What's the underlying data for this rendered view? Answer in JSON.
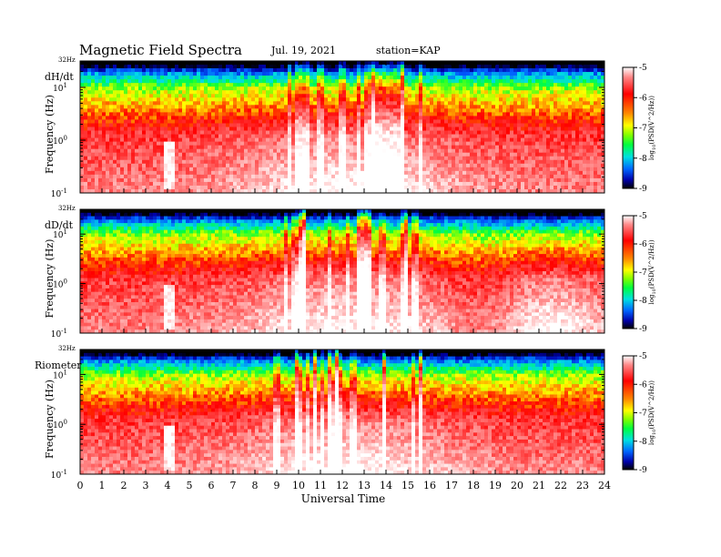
{
  "header": {
    "title": "Magnetic Field Spectra",
    "date": "Jul. 19, 2021",
    "station": "station=KAP"
  },
  "chart_data": [
    {
      "type": "heatmap",
      "panel_label": "dH/dt",
      "ylabel": "Frequency (Hz)",
      "yscale": "log",
      "y_top_label": "32Hz",
      "y_ticks": [
        {
          "base": "10",
          "exp": "1"
        },
        {
          "base": "10",
          "exp": "0"
        },
        {
          "base": "10",
          "exp": "-1"
        }
      ],
      "colorbar": {
        "label": "log10(PSD(V^2/Hz))",
        "label_prefix": "log",
        "label_sub": "10",
        "label_rest": "(PSD(V^2/Hz))",
        "ticks": [
          "-5",
          "-6",
          "-7",
          "-8",
          "-9"
        ],
        "range": [
          -9,
          -5
        ]
      }
    },
    {
      "type": "heatmap",
      "panel_label": "dD/dt",
      "ylabel": "Frequency (Hz)",
      "yscale": "log",
      "y_top_label": "32Hz",
      "y_ticks": [
        {
          "base": "10",
          "exp": "1"
        },
        {
          "base": "10",
          "exp": "0"
        },
        {
          "base": "10",
          "exp": "-1"
        }
      ],
      "colorbar": {
        "label": "log10(PSD(V^2/Hz))",
        "label_prefix": "log",
        "label_sub": "10",
        "label_rest": "(PSD(V^2/Hz))",
        "ticks": [
          "-5",
          "-6",
          "-7",
          "-8",
          "-9"
        ],
        "range": [
          -9,
          -5
        ]
      }
    },
    {
      "type": "heatmap",
      "panel_label": "Riometer",
      "ylabel": "Frequency (Hz)",
      "yscale": "log",
      "y_top_label": "32Hz",
      "y_ticks": [
        {
          "base": "10",
          "exp": "1"
        },
        {
          "base": "10",
          "exp": "0"
        },
        {
          "base": "10",
          "exp": "-1"
        }
      ],
      "colorbar": {
        "label": "log10(PSD(V^2/Hz))",
        "label_prefix": "log",
        "label_sub": "10",
        "label_rest": "(PSD(V^2/Hz))",
        "ticks": [
          "-5",
          "-6",
          "-7",
          "-8",
          "-9"
        ],
        "range": [
          -9,
          -5
        ]
      }
    }
  ],
  "xaxis": {
    "label": "Universal Time",
    "ticks": [
      "0",
      "1",
      "2",
      "3",
      "4",
      "5",
      "6",
      "7",
      "8",
      "9",
      "10",
      "11",
      "12",
      "13",
      "14",
      "15",
      "16",
      "17",
      "18",
      "19",
      "20",
      "21",
      "22",
      "23",
      "24"
    ],
    "range": [
      0,
      24
    ]
  },
  "colors": {
    "scale": [
      "#000000",
      "#0000cc",
      "#0088ff",
      "#00e0e0",
      "#00ff00",
      "#c8ff00",
      "#ffff00",
      "#ff8800",
      "#ff0000",
      "#ff7777",
      "#ffffff"
    ]
  }
}
